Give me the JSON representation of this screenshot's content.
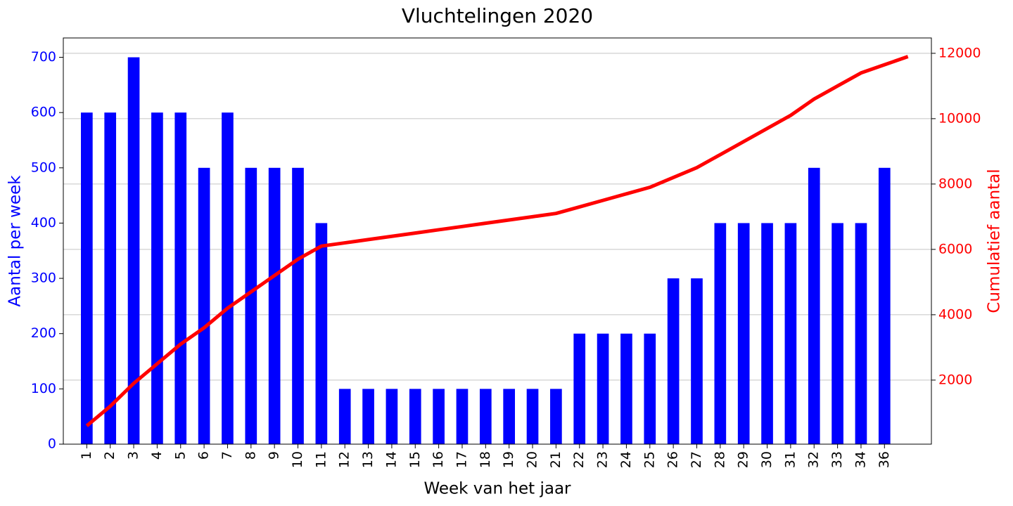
{
  "chart_data": {
    "type": "bar",
    "title": "Vluchtelingen 2020",
    "x_label": "Week van het jaar",
    "y_label": "Aantal per week",
    "y2_label": "Cumulatief aantal",
    "categories": [
      "1",
      "2",
      "3",
      "4",
      "5",
      "6",
      "7",
      "8",
      "9",
      "10",
      "11",
      "12",
      "13",
      "14",
      "15",
      "16",
      "17",
      "18",
      "19",
      "20",
      "21",
      "22",
      "23",
      "24",
      "25",
      "26",
      "27",
      "28",
      "29",
      "30",
      "31",
      "32",
      "33",
      "34",
      "36",
      null
    ],
    "series": [
      {
        "type": "bar",
        "color": "#0000ff",
        "axis": "y",
        "values": [
          600,
          600,
          700,
          600,
          600,
          500,
          600,
          500,
          500,
          500,
          400,
          100,
          100,
          100,
          100,
          100,
          100,
          100,
          100,
          100,
          100,
          200,
          200,
          200,
          200,
          300,
          300,
          400,
          400,
          400,
          400,
          500,
          400,
          400,
          500,
          null
        ]
      },
      {
        "type": "line",
        "color": "#ff0000",
        "axis": "y2",
        "values": [
          600,
          1200,
          1900,
          2500,
          3100,
          3600,
          4200,
          4700,
          5200,
          5700,
          6100,
          6200,
          6300,
          6400,
          6500,
          6600,
          6700,
          6800,
          6900,
          7000,
          7100,
          7300,
          7500,
          7700,
          7900,
          8200,
          8500,
          8900,
          9300,
          9700,
          10100,
          10600,
          11000,
          11400,
          11650,
          11900
        ]
      }
    ],
    "ylim": [
      0,
      735
    ],
    "yticks": [
      0,
      100,
      200,
      300,
      400,
      500,
      600,
      700
    ],
    "y2lim": [
      40,
      12470
    ],
    "y2ticks": [
      2000,
      4000,
      6000,
      8000,
      10000,
      12000
    ],
    "grid": true
  }
}
